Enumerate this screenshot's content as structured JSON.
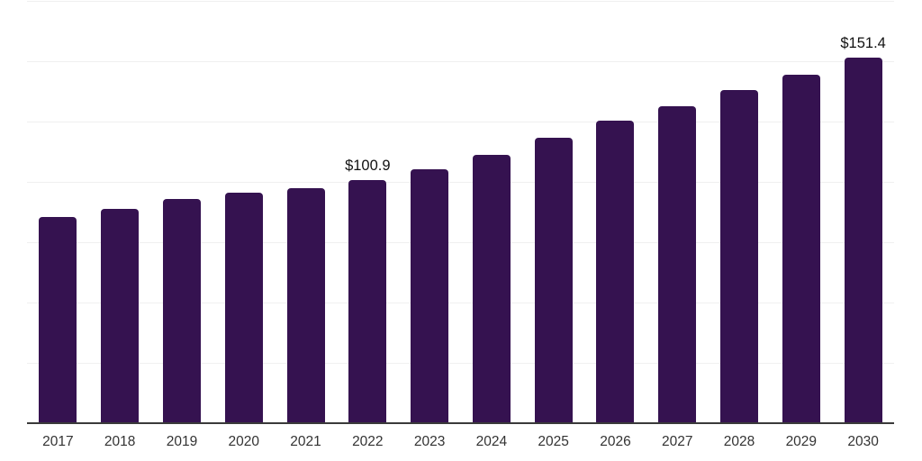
{
  "chart_data": {
    "type": "bar",
    "categories": [
      "2017",
      "2018",
      "2019",
      "2020",
      "2021",
      "2022",
      "2023",
      "2024",
      "2025",
      "2026",
      "2027",
      "2028",
      "2029",
      "2030"
    ],
    "values": [
      85.4,
      88.7,
      93.0,
      95.4,
      97.4,
      100.9,
      105.2,
      111.2,
      118.3,
      125.4,
      131.2,
      138.1,
      144.5,
      151.4
    ],
    "bar_labels": [
      "",
      "",
      "",
      "",
      "",
      "$100.9",
      "",
      "",
      "",
      "",
      "",
      "",
      "",
      "$151.4"
    ],
    "title": "",
    "xlabel": "",
    "ylabel": "",
    "ylim": [
      0,
      175
    ],
    "gridline_step": 25,
    "grid": true,
    "legend": false,
    "colors": {
      "bar": "#351250",
      "axis_line": "#3a3a3a",
      "gridline": "#f0f0f0",
      "tick_label": "#333333",
      "value_label": "#111111",
      "background": "#ffffff"
    }
  }
}
